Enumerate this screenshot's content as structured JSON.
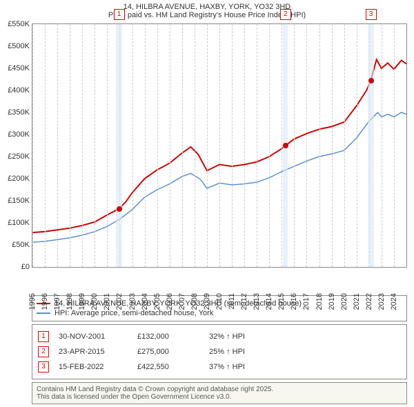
{
  "title": {
    "line1": "14, HILBRA AVENUE, HAXBY, YORK, YO32 3HD",
    "line2": "Price paid vs. HM Land Registry's House Price Index (HPI)"
  },
  "chart": {
    "type": "line",
    "xmin": 1995,
    "xmax": 2025,
    "ymin": 0,
    "ymax": 550000,
    "yticks": [
      0,
      50000,
      100000,
      150000,
      200000,
      250000,
      300000,
      350000,
      400000,
      450000,
      500000,
      550000
    ],
    "ytick_labels": [
      "£0",
      "£50K",
      "£100K",
      "£150K",
      "£200K",
      "£250K",
      "£300K",
      "£350K",
      "£400K",
      "£450K",
      "£500K",
      "£550K"
    ],
    "xticks": [
      1995,
      1996,
      1997,
      1998,
      1999,
      2000,
      2001,
      2002,
      2003,
      2004,
      2005,
      2006,
      2007,
      2008,
      2009,
      2010,
      2011,
      2012,
      2013,
      2014,
      2015,
      2016,
      2017,
      2018,
      2019,
      2020,
      2021,
      2022,
      2023,
      2024
    ],
    "bands": [
      {
        "from": 2001.7,
        "to": 2002.2
      },
      {
        "from": 2015.1,
        "to": 2015.5
      },
      {
        "from": 2021.9,
        "to": 2022.4
      }
    ],
    "markers": [
      {
        "n": "1",
        "x": 2001.95,
        "y": 132000,
        "dot_color": "#d00000"
      },
      {
        "n": "2",
        "x": 2015.3,
        "y": 275000,
        "dot_color": "#d00000"
      },
      {
        "n": "3",
        "x": 2022.15,
        "y": 422550,
        "dot_color": "#d00000"
      }
    ],
    "series": [
      {
        "name": "red",
        "color": "#d00000",
        "width": 2,
        "points": [
          [
            1995,
            78000
          ],
          [
            1996,
            80000
          ],
          [
            1997,
            84000
          ],
          [
            1998,
            88000
          ],
          [
            1999,
            94000
          ],
          [
            2000,
            102000
          ],
          [
            2001,
            118000
          ],
          [
            2001.95,
            132000
          ],
          [
            2002.5,
            148000
          ],
          [
            2003,
            168000
          ],
          [
            2004,
            200000
          ],
          [
            2005,
            220000
          ],
          [
            2006,
            235000
          ],
          [
            2007,
            258000
          ],
          [
            2007.7,
            272000
          ],
          [
            2008.3,
            255000
          ],
          [
            2009,
            218000
          ],
          [
            2010,
            232000
          ],
          [
            2011,
            228000
          ],
          [
            2012,
            232000
          ],
          [
            2013,
            238000
          ],
          [
            2014,
            250000
          ],
          [
            2015,
            268000
          ],
          [
            2015.3,
            275000
          ],
          [
            2016,
            290000
          ],
          [
            2017,
            302000
          ],
          [
            2018,
            312000
          ],
          [
            2019,
            318000
          ],
          [
            2020,
            328000
          ],
          [
            2021,
            365000
          ],
          [
            2021.8,
            400000
          ],
          [
            2022.15,
            422550
          ],
          [
            2022.6,
            470000
          ],
          [
            2023,
            450000
          ],
          [
            2023.5,
            462000
          ],
          [
            2024,
            448000
          ],
          [
            2024.6,
            468000
          ],
          [
            2025,
            460000
          ]
        ]
      },
      {
        "name": "blue",
        "color": "#5a8fd6",
        "width": 1.5,
        "points": [
          [
            1995,
            56000
          ],
          [
            1996,
            58000
          ],
          [
            1997,
            62000
          ],
          [
            1998,
            66000
          ],
          [
            1999,
            72000
          ],
          [
            2000,
            80000
          ],
          [
            2001,
            92000
          ],
          [
            2002,
            108000
          ],
          [
            2003,
            130000
          ],
          [
            2004,
            158000
          ],
          [
            2005,
            175000
          ],
          [
            2006,
            188000
          ],
          [
            2007,
            205000
          ],
          [
            2007.7,
            212000
          ],
          [
            2008.5,
            198000
          ],
          [
            2009,
            178000
          ],
          [
            2010,
            190000
          ],
          [
            2011,
            186000
          ],
          [
            2012,
            188000
          ],
          [
            2013,
            192000
          ],
          [
            2014,
            202000
          ],
          [
            2015,
            216000
          ],
          [
            2016,
            228000
          ],
          [
            2017,
            240000
          ],
          [
            2018,
            250000
          ],
          [
            2019,
            256000
          ],
          [
            2020,
            264000
          ],
          [
            2021,
            292000
          ],
          [
            2022,
            330000
          ],
          [
            2022.7,
            350000
          ],
          [
            2023,
            340000
          ],
          [
            2023.5,
            346000
          ],
          [
            2024,
            340000
          ],
          [
            2024.6,
            350000
          ],
          [
            2025,
            346000
          ]
        ]
      }
    ]
  },
  "legend": {
    "items": [
      {
        "color": "#d00000",
        "label": "14, HILBRA AVENUE, HAXBY, YORK, YO32 3HD (semi-detached house)"
      },
      {
        "color": "#5a8fd6",
        "label": "HPI: Average price, semi-detached house, York"
      }
    ]
  },
  "events": [
    {
      "n": "1",
      "date": "30-NOV-2001",
      "price": "£132,000",
      "diff": "32% ↑ HPI"
    },
    {
      "n": "2",
      "date": "23-APR-2015",
      "price": "£275,000",
      "diff": "25% ↑ HPI"
    },
    {
      "n": "3",
      "date": "15-FEB-2022",
      "price": "£422,550",
      "diff": "37% ↑ HPI"
    }
  ],
  "footer": {
    "line1": "Contains HM Land Registry data © Crown copyright and database right 2025.",
    "line2": "This data is licensed under the Open Government Licence v3.0."
  }
}
